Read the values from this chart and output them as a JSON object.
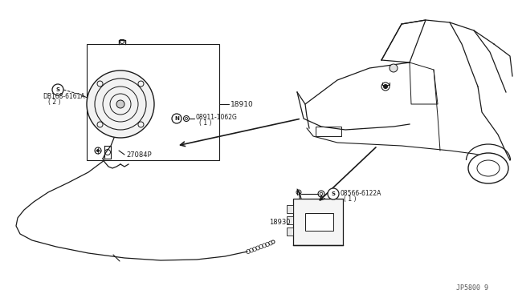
{
  "bg_color": "#ffffff",
  "line_color": "#1a1a1a",
  "fig_width": 6.4,
  "fig_height": 3.72,
  "dpi": 100,
  "watermark": "JP5800 9",
  "labels": {
    "part1": "18910",
    "part2_line1": "08911-1062G",
    "part2_line2": "( 1 )",
    "part3_line1": "DB168-6161A",
    "part3_line2": "( 2 )",
    "part4": "27084P",
    "part5_line1": "08566-6122A",
    "part5_line2": "( 1 )",
    "part6": "18930"
  }
}
